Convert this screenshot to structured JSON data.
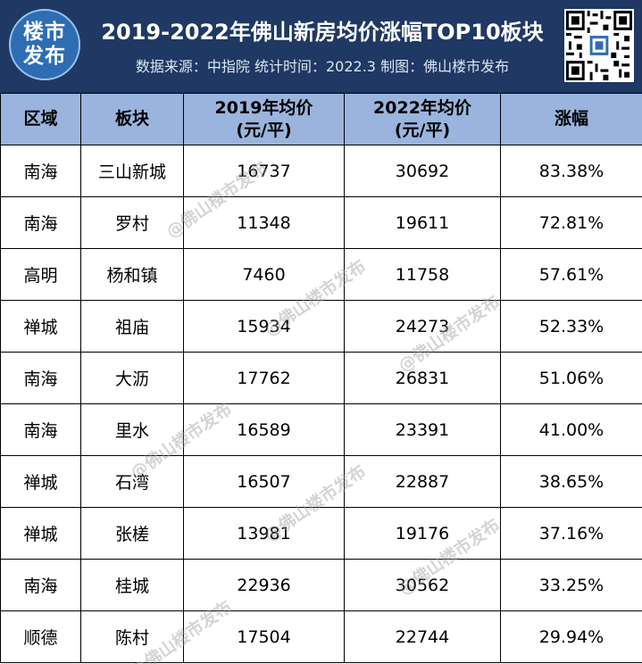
{
  "header": {
    "logo_line1": "楼市",
    "logo_line2": "发布",
    "title": "2019-2022年佛山新房均价涨幅TOP10板块",
    "subtitle": "数据来源：中指院 统计时间：2022.3 制图：佛山楼市发布"
  },
  "table": {
    "columns": [
      "区域",
      "板块",
      "2019年均价\n(元/平)",
      "2022年均价\n(元/平)",
      "涨幅"
    ],
    "col_2019_line1": "2019年均价",
    "col_2019_line2": "(元/平)",
    "col_2022_line1": "2022年均价",
    "col_2022_line2": "(元/平)",
    "rows": [
      {
        "district": "南海",
        "block": "三山新城",
        "price_2019": "16737",
        "price_2022": "30692",
        "growth": "83.38%"
      },
      {
        "district": "南海",
        "block": "罗村",
        "price_2019": "11348",
        "price_2022": "19611",
        "growth": "72.81%"
      },
      {
        "district": "高明",
        "block": "杨和镇",
        "price_2019": "7460",
        "price_2022": "11758",
        "growth": "57.61%"
      },
      {
        "district": "禅城",
        "block": "祖庙",
        "price_2019": "15934",
        "price_2022": "24273",
        "growth": "52.33%"
      },
      {
        "district": "南海",
        "block": "大沥",
        "price_2019": "17762",
        "price_2022": "26831",
        "growth": "51.06%"
      },
      {
        "district": "南海",
        "block": "里水",
        "price_2019": "16589",
        "price_2022": "23391",
        "growth": "41.00%"
      },
      {
        "district": "禅城",
        "block": "石湾",
        "price_2019": "16507",
        "price_2022": "22887",
        "growth": "38.65%"
      },
      {
        "district": "禅城",
        "block": "张槎",
        "price_2019": "13981",
        "price_2022": "19176",
        "growth": "37.16%"
      },
      {
        "district": "南海",
        "block": "桂城",
        "price_2019": "22936",
        "price_2022": "30562",
        "growth": "33.25%"
      },
      {
        "district": "顺德",
        "block": "陈村",
        "price_2019": "17504",
        "price_2022": "22744",
        "growth": "29.94%"
      }
    ]
  },
  "watermark": "@佛山楼市发布",
  "colors": {
    "header_bg": "#1f3864",
    "table_header_bg": "#9ab4dd",
    "logo_bg": "#2e6db4"
  }
}
